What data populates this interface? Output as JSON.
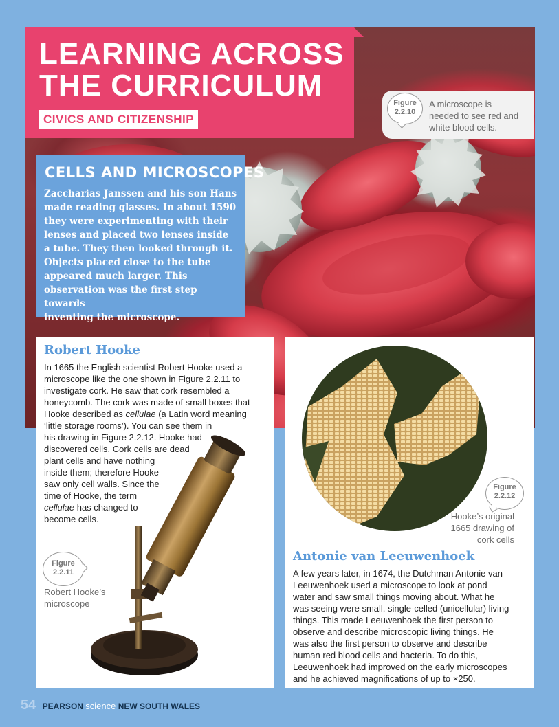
{
  "header": {
    "title_line1": "LEARNING ACROSS",
    "title_line2": "THE CURRICULUM",
    "subtitle": "CIVICS AND CITIZENSHIP"
  },
  "figures": {
    "fig_2_2_10": {
      "label": "Figure",
      "number": "2.2.10",
      "caption_line1": "A microscope is",
      "caption_line2": "needed to see red and",
      "caption_line3": "white blood cells."
    },
    "fig_2_2_11": {
      "label": "Figure",
      "number": "2.2.11",
      "caption_line1": "Robert Hooke’s",
      "caption_line2": "microscope"
    },
    "fig_2_2_12": {
      "label": "Figure",
      "number": "2.2.12",
      "caption_line1": "Hooke’s original",
      "caption_line2": "1665 drawing of",
      "caption_line3": "cork cells"
    }
  },
  "cells": {
    "title": "CELLS AND MICROSCOPES",
    "lines": [
      "Zaccharias Janssen and his son Hans",
      "made reading glasses. In about 1590",
      "they were experimenting with their",
      "lenses and placed two lenses inside",
      "a tube. They then looked through it.",
      "Objects placed close to the tube",
      "appeared much larger. This",
      "observation was the first step towards",
      "inventing the microscope."
    ]
  },
  "hooke": {
    "title": "Robert Hooke",
    "lines": [
      "In 1665 the English scientist Robert Hooke used a",
      "microscope like the one shown in Figure 2.2.11 to",
      "investigate cork. He saw that cork resembled a",
      "honeycomb. The cork was made of small boxes that",
      "‘little storage rooms’). You can see them in",
      "his drawing in Figure 2.2.12. Hooke had",
      "discovered cells. Cork cells are dead",
      "plant cells and have nothing",
      "inside them; therefore Hooke",
      "saw only cell walls. Since the",
      "time of Hooke, the term",
      "has changed to",
      "become cells."
    ],
    "line5_pre": "Hooke described as ",
    "line5_italic": "cellulae",
    "line5_post": " (a Latin word meaning",
    "italic_term": "cellulae"
  },
  "leeuwenhoek": {
    "title": "Antonie van Leeuwenhoek",
    "lines": [
      "A few years later, in 1674, the Dutchman Antonie van",
      "Leeuwenhoek used a microscope to look at pond",
      "water and saw small things moving about. What he",
      "was seeing were small, single-celled (unicellular) living",
      "things. This made Leeuwenhoek the first person to",
      "observe and describe microscopic living things. He",
      "was also the first person to observe and describe",
      "human red blood cells and bacteria. To do this,",
      "Leeuwenhoek had improved on the early microscopes",
      "and he achieved magnifications of up to ×250."
    ]
  },
  "footer": {
    "page_number": "54",
    "brand": "PEARSON",
    "science": "science",
    "region": "NEW SOUTH WALES"
  },
  "colors": {
    "accent_pink": "#e8426e",
    "accent_blue": "#6ba3dc",
    "heading_blue": "#5b9ad9",
    "background": "#7fb1e0"
  }
}
